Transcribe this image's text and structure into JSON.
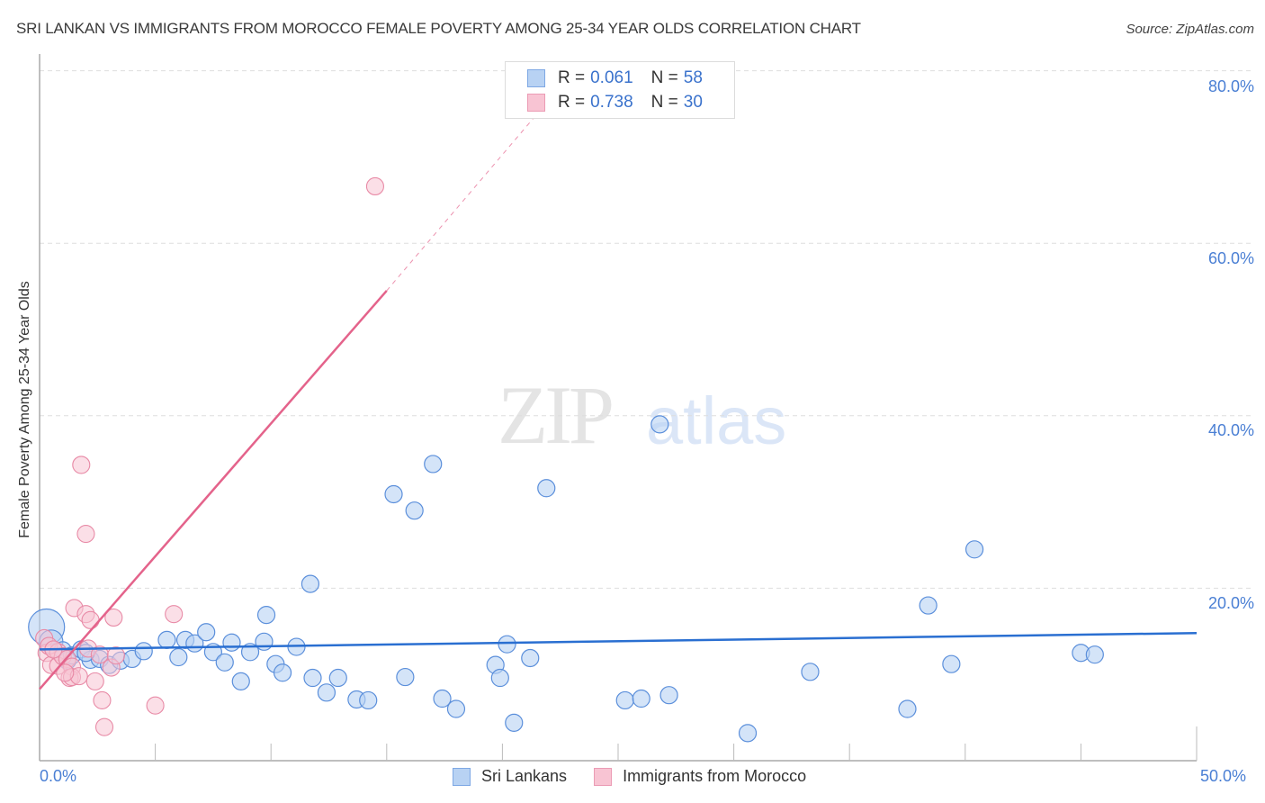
{
  "header": {
    "title": "SRI LANKAN VS IMMIGRANTS FROM MOROCCO FEMALE POVERTY AMONG 25-34 YEAR OLDS CORRELATION CHART",
    "source": "Source: ZipAtlas.com"
  },
  "watermark": {
    "zip": "ZIP",
    "atlas": "atlas"
  },
  "legend_top": {
    "rows": [
      {
        "r_label": "R =",
        "r_value": "0.061",
        "n_label": "N =",
        "n_value": "58"
      },
      {
        "r_label": "R =",
        "r_value": "0.738",
        "n_label": "N =",
        "n_value": "30"
      }
    ]
  },
  "legend_bottom": {
    "items": [
      {
        "label": "Sri Lankans"
      },
      {
        "label": "Immigrants from Morocco"
      }
    ]
  },
  "axes": {
    "ylabel": "Female Poverty Among 25-34 Year Olds",
    "yticks": [
      "80.0%",
      "60.0%",
      "40.0%",
      "20.0%"
    ],
    "xticks": [
      "0.0%",
      "50.0%"
    ]
  },
  "colors": {
    "blue_fill": "#b8d2f3",
    "blue_stroke": "#5b8fdb",
    "blue_line": "#2a6fd1",
    "pink_fill": "#f8c4d3",
    "pink_stroke": "#e88aa6",
    "pink_line": "#e4638b",
    "tick_text": "#4a7fd4"
  },
  "chart_data": {
    "type": "scatter",
    "title": "SRI LANKAN VS IMMIGRANTS FROM MOROCCO FEMALE POVERTY AMONG 25-34 YEAR OLDS CORRELATION CHART",
    "xlabel": "",
    "ylabel": "Female Poverty Among 25-34 Year Olds",
    "xlim": [
      0,
      50
    ],
    "ylim": [
      0,
      82
    ],
    "x_ticks": [
      "0.0%",
      "50.0%"
    ],
    "y_ticks": [
      "20.0%",
      "40.0%",
      "60.0%",
      "80.0%"
    ],
    "grid": "horizontal dashed",
    "legend_position": "top-center and bottom",
    "series": [
      {
        "name": "Sri Lankans",
        "R": 0.061,
        "N": 58,
        "trend": {
          "x": [
            0,
            50
          ],
          "y": [
            12.9,
            14.8
          ]
        },
        "points": [
          [
            0.3,
            15.5
          ],
          [
            0.5,
            13.8
          ],
          [
            1.0,
            12.8
          ],
          [
            1.2,
            11.6
          ],
          [
            1.4,
            12.2
          ],
          [
            1.8,
            12.9
          ],
          [
            2.2,
            11.7
          ],
          [
            2.6,
            11.8
          ],
          [
            3.0,
            11.1
          ],
          [
            3.5,
            11.6
          ],
          [
            4.0,
            11.8
          ],
          [
            4.5,
            12.7
          ],
          [
            5.5,
            14.0
          ],
          [
            6.0,
            12.0
          ],
          [
            6.3,
            14.0
          ],
          [
            6.7,
            13.6
          ],
          [
            7.2,
            14.9
          ],
          [
            7.5,
            12.6
          ],
          [
            8.0,
            11.4
          ],
          [
            8.3,
            13.7
          ],
          [
            8.7,
            9.2
          ],
          [
            9.1,
            12.6
          ],
          [
            9.7,
            13.8
          ],
          [
            9.8,
            16.9
          ],
          [
            10.2,
            11.2
          ],
          [
            10.5,
            10.2
          ],
          [
            11.1,
            13.2
          ],
          [
            11.7,
            20.5
          ],
          [
            11.8,
            9.6
          ],
          [
            12.4,
            7.9
          ],
          [
            12.9,
            9.6
          ],
          [
            13.7,
            7.1
          ],
          [
            14.2,
            7.0
          ],
          [
            15.3,
            30.9
          ],
          [
            15.8,
            9.7
          ],
          [
            16.2,
            29.0
          ],
          [
            17.0,
            34.4
          ],
          [
            17.4,
            7.2
          ],
          [
            18.0,
            6.0
          ],
          [
            19.7,
            11.1
          ],
          [
            19.9,
            9.6
          ],
          [
            20.2,
            13.5
          ],
          [
            20.5,
            4.4
          ],
          [
            21.2,
            11.9
          ],
          [
            21.9,
            31.6
          ],
          [
            25.3,
            7.0
          ],
          [
            26.8,
            39.0
          ],
          [
            26.0,
            7.2
          ],
          [
            27.2,
            7.6
          ],
          [
            30.6,
            3.2
          ],
          [
            33.3,
            10.3
          ],
          [
            37.5,
            6.0
          ],
          [
            38.4,
            18.0
          ],
          [
            39.4,
            11.2
          ],
          [
            40.4,
            24.5
          ],
          [
            45.0,
            12.5
          ],
          [
            45.6,
            12.3
          ],
          [
            2.0,
            12.5
          ]
        ]
      },
      {
        "name": "Immigrants from Morocco",
        "R": 0.738,
        "N": 30,
        "trend": {
          "x": [
            0,
            15
          ],
          "y": [
            8.3,
            54.5
          ],
          "dashed_extension_to": [
            21.5,
            75.0
          ]
        },
        "points": [
          [
            0.2,
            14.2
          ],
          [
            0.3,
            12.5
          ],
          [
            0.4,
            13.3
          ],
          [
            0.5,
            11.1
          ],
          [
            0.8,
            12.6
          ],
          [
            0.8,
            11.0
          ],
          [
            1.0,
            12.1
          ],
          [
            1.2,
            11.8
          ],
          [
            1.4,
            10.9
          ],
          [
            1.5,
            17.7
          ],
          [
            1.3,
            9.6
          ],
          [
            1.4,
            9.7
          ],
          [
            1.7,
            9.8
          ],
          [
            1.8,
            34.3
          ],
          [
            2.0,
            26.3
          ],
          [
            2.0,
            17.0
          ],
          [
            2.1,
            13.0
          ],
          [
            2.2,
            16.3
          ],
          [
            2.4,
            9.2
          ],
          [
            2.6,
            12.3
          ],
          [
            2.7,
            7.0
          ],
          [
            2.8,
            3.9
          ],
          [
            3.1,
            10.8
          ],
          [
            3.2,
            16.6
          ],
          [
            3.3,
            12.2
          ],
          [
            5.0,
            6.4
          ],
          [
            5.8,
            17.0
          ],
          [
            14.5,
            66.6
          ],
          [
            0.6,
            12.9
          ],
          [
            1.1,
            10.2
          ]
        ]
      }
    ]
  }
}
